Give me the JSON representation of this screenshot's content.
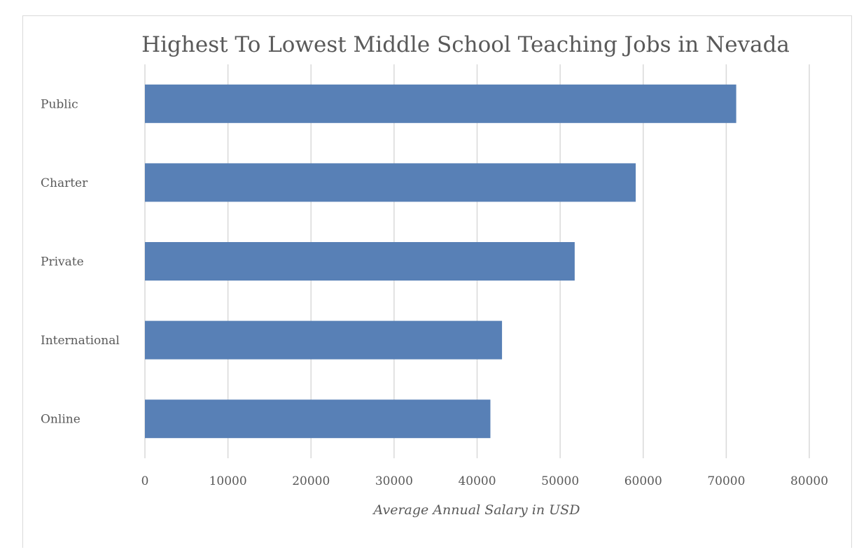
{
  "chart_data": {
    "type": "bar",
    "orientation": "horizontal",
    "title": "Highest To Lowest Middle School Teaching Jobs in Nevada",
    "xlabel": "Average Annual Salary in USD",
    "ylabel": "",
    "categories": [
      "Public",
      "Charter",
      "Private",
      "International",
      "Online"
    ],
    "values": [
      71200,
      59100,
      51750,
      43000,
      41600
    ],
    "xlim": [
      0,
      80000
    ],
    "xticks": [
      "0",
      "10000",
      "20000",
      "30000",
      "40000",
      "50000",
      "60000",
      "70000",
      "80000"
    ],
    "grid": "vertical",
    "legend": "none",
    "bar_color": "#5880b6",
    "grid_color": "#d9d9d9"
  }
}
